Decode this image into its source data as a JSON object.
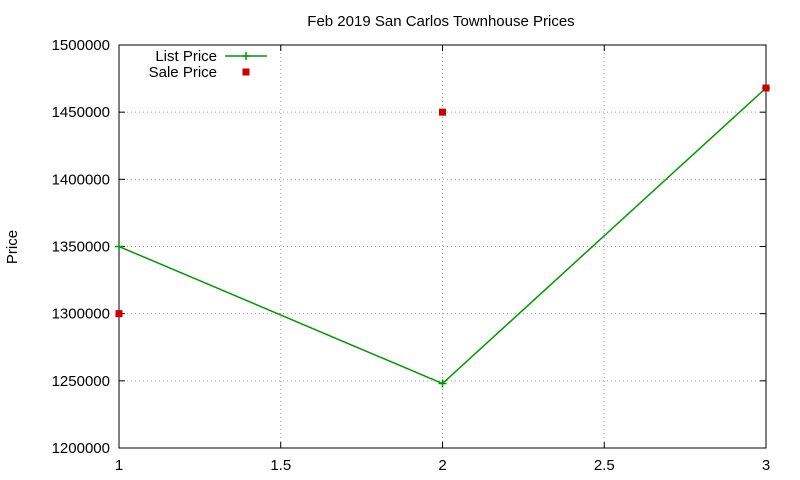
{
  "chart_data": {
    "type": "line",
    "title": "Feb 2019 San Carlos Townhouse Prices",
    "xlabel": "",
    "ylabel": "Price",
    "xlim": [
      1,
      3
    ],
    "ylim": [
      1200000,
      1500000
    ],
    "x_ticks": [
      1,
      1.5,
      2,
      2.5,
      3
    ],
    "x_tick_labels": [
      "1",
      "1.5",
      "2",
      "2.5",
      "3"
    ],
    "y_ticks": [
      1200000,
      1250000,
      1300000,
      1350000,
      1400000,
      1450000,
      1500000
    ],
    "y_tick_labels": [
      "1200000",
      "1250000",
      "1300000",
      "1350000",
      "1400000",
      "1450000",
      "1500000"
    ],
    "grid": true,
    "legend_position": "top-left",
    "series": [
      {
        "name": "List Price",
        "style": "line-plus",
        "color": "#009900",
        "x": [
          1,
          2,
          3
        ],
        "values": [
          1350000,
          1248000,
          1468000
        ]
      },
      {
        "name": "Sale Price",
        "style": "square-points",
        "color": "#cc0000",
        "x": [
          1,
          2,
          3
        ],
        "values": [
          1300000,
          1450000,
          1468000
        ]
      }
    ]
  }
}
